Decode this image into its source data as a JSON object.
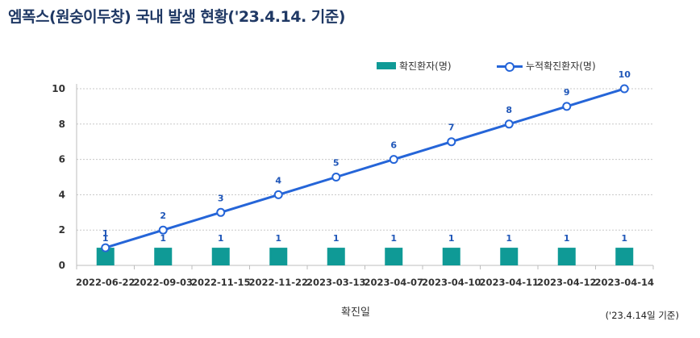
{
  "title": "엠폭스(원숭이두창) 국내 발생 현황('23.4.14. 기준)",
  "note": "('23.4.14일 기준)",
  "colors": {
    "bar": "#0f9a96",
    "line": "#2565d8",
    "label": "#1f56b8",
    "grid": "#c8c8c8",
    "title": "#1f3864"
  },
  "chart_data": {
    "type": "bar",
    "categories": [
      "2022-06-22",
      "2022-09-03",
      "2022-11-15",
      "2022-11-22",
      "2023-03-13",
      "2023-04-07",
      "2023-04-10",
      "2023-04-11",
      "2023-04-12",
      "2023-04-14"
    ],
    "series": [
      {
        "name": "확진환자(명)",
        "type": "bar",
        "values": [
          1,
          1,
          1,
          1,
          1,
          1,
          1,
          1,
          1,
          1
        ]
      },
      {
        "name": "누적확진환자(명)",
        "type": "line",
        "values": [
          1,
          2,
          3,
          4,
          5,
          6,
          7,
          8,
          9,
          10
        ]
      }
    ],
    "xlabel": "확진일",
    "ylabel": "",
    "ylim": [
      0,
      10
    ],
    "yticks": [
      0,
      2,
      4,
      6,
      8,
      10
    ],
    "grid": true,
    "legend": "top"
  }
}
